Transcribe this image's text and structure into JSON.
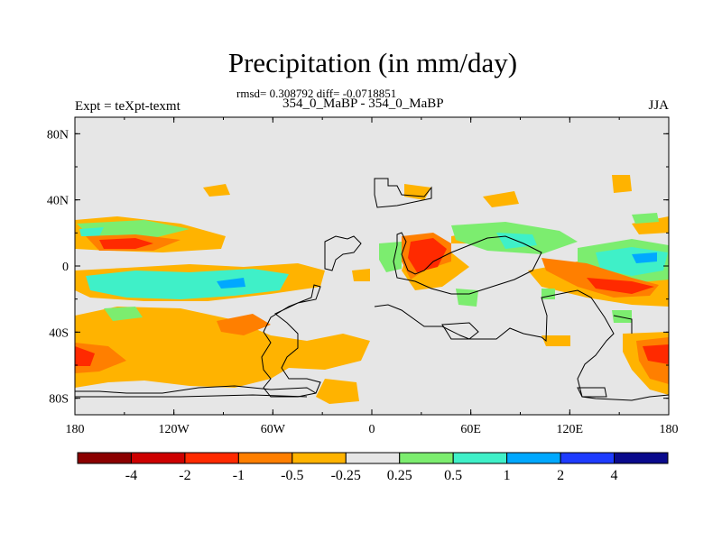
{
  "map": {
    "title": "Precipitation (in mm/day)",
    "stats_line": "rmsd= 0.308792 diff= -0.0718851",
    "center_label": "354_0_MaBP - 354_0_MaBP",
    "left_label": "Expt = teXpt-texmt",
    "right_label": "JJA",
    "lat_ticks": [
      "80N",
      "40N",
      "0",
      "40S",
      "80S"
    ],
    "lon_ticks": [
      "180",
      "120W",
      "60W",
      "0",
      "60E",
      "120E",
      "180"
    ],
    "background_color": "#e6e6e6",
    "coastline_color": "#000000"
  },
  "colorbar": {
    "labels": [
      "-4",
      "-2",
      "-1",
      "-0.5",
      "-0.25",
      "0.25",
      "0.5",
      "1",
      "2",
      "4"
    ],
    "colors": [
      "#8b0000",
      "#cd0000",
      "#ff2a00",
      "#ff7f00",
      "#ffb300",
      "#e6e6e6",
      "#7ced6f",
      "#3ff0c8",
      "#00a8ff",
      "#1e3cff",
      "#0a0a8c"
    ]
  }
}
